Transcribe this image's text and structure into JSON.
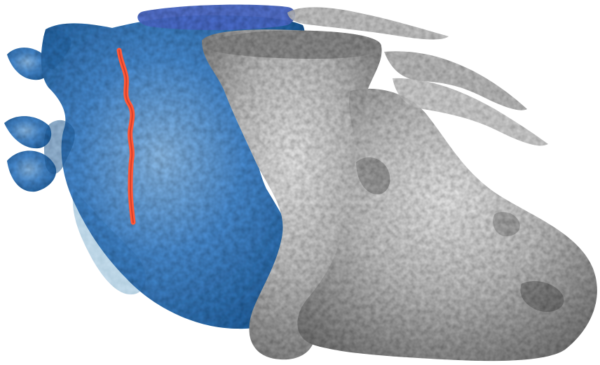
{
  "scene": {
    "background": "#ffffff",
    "colors": {
      "heart_blue": "#4b8fd6",
      "heart_blue_dark": "#1f5e9e",
      "heart_cap": "#4f6fd1",
      "overlay_gray": "#b9b9b9",
      "overlay_gray_dark": "#6f6f6f",
      "overlay_cap": "#8f8f8f",
      "vessel_red": "#ff5a3a"
    },
    "objects": [
      "heart-surface-blue",
      "segmented-anatomy-gray",
      "coronary-vessel-red"
    ]
  }
}
